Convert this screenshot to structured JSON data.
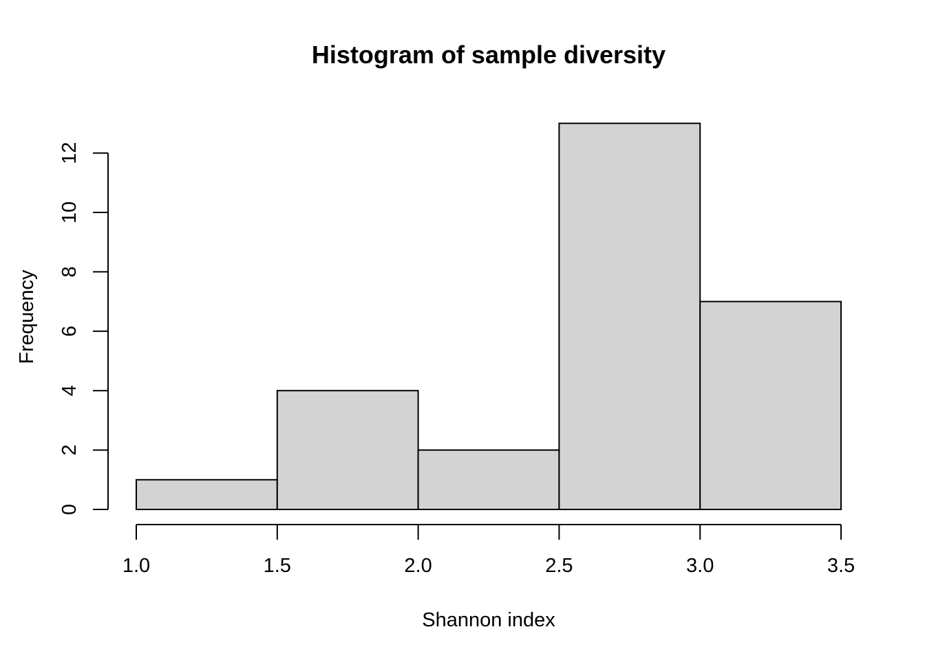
{
  "chart_data": {
    "type": "bar",
    "title": "Histogram of sample diversity",
    "xlabel": "Shannon index",
    "ylabel": "Frequency",
    "bins": [
      {
        "start": 1.0,
        "end": 1.5,
        "count": 1
      },
      {
        "start": 1.5,
        "end": 2.0,
        "count": 4
      },
      {
        "start": 2.0,
        "end": 2.5,
        "count": 2
      },
      {
        "start": 2.5,
        "end": 3.0,
        "count": 13
      },
      {
        "start": 3.0,
        "end": 3.5,
        "count": 7
      }
    ],
    "xlim": [
      1.0,
      3.5
    ],
    "ylim": [
      0,
      13
    ],
    "x_ticks": [
      "1.0",
      "1.5",
      "2.0",
      "2.5",
      "3.0",
      "3.5"
    ],
    "y_ticks": [
      "0",
      "2",
      "4",
      "6",
      "8",
      "10",
      "12"
    ],
    "bar_color": "#d3d3d3",
    "grid": false,
    "legend": "none"
  }
}
